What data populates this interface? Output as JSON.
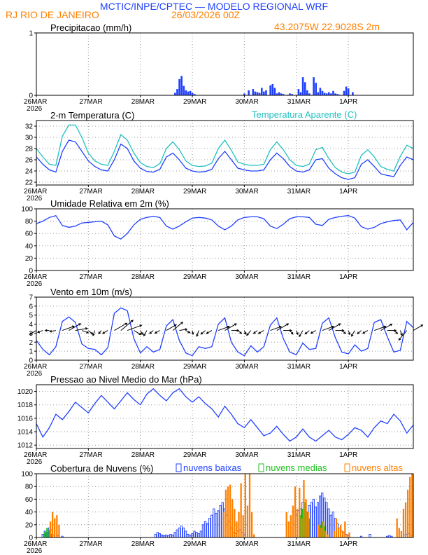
{
  "header": {
    "title": "MCTIC/INPE/CPTEC — MODELO REGIONAL WRF",
    "location": "RJ RIO DE JANEIRO",
    "run": "26/03/2026 00Z",
    "coords": "43.2075W 22.9028S 2m"
  },
  "colors": {
    "header_title": "#2040ff",
    "header_sub": "#ff8000",
    "temp": "#2040ff",
    "apparent": "#20c0c0",
    "low": "#2040ff",
    "mid": "#20c020",
    "high": "#ff8000"
  },
  "chart_data": [
    {
      "type": "bar",
      "title": "Precipitacao (mm/h)",
      "x_unit": "hours since 26MAR 00Z",
      "xlim": [
        0,
        174
      ],
      "ylim": [
        0,
        1
      ],
      "yticks": [
        0,
        1
      ],
      "xticks": [
        "26MAR",
        "27MAR",
        "28MAR",
        "29MAR",
        "30MAR",
        "31MAR",
        "1APR"
      ],
      "year_label": "2026",
      "x": [
        64,
        65,
        66,
        67,
        68,
        69,
        70,
        71,
        72,
        73,
        96,
        98,
        100,
        101,
        102,
        103,
        104,
        105,
        106,
        108,
        109,
        110,
        111,
        112,
        113,
        114,
        116,
        117,
        118,
        121,
        122,
        123,
        124,
        125,
        126,
        128,
        129,
        130,
        131,
        132,
        133,
        134,
        135,
        136,
        137,
        138,
        139,
        140,
        142,
        143,
        144,
        146
      ],
      "values": [
        0.04,
        0.1,
        0.26,
        0.31,
        0.15,
        0.08,
        0.06,
        0.07,
        0.04,
        0.02,
        0.03,
        0.08,
        0.1,
        0.06,
        0.05,
        0.04,
        0.12,
        0.06,
        0.08,
        0.16,
        0.18,
        0.12,
        0.03,
        0.05,
        0.03,
        0.02,
        0.01,
        0.03,
        0.02,
        0.1,
        0.05,
        0.29,
        0.21,
        0.08,
        0.03,
        0.29,
        0.2,
        0.05,
        0.12,
        0.07,
        0.04,
        0.03,
        0.05,
        0.03,
        0.07,
        0.03,
        0.02,
        0.01,
        0.07,
        0.14,
        0.11,
        0.05
      ]
    },
    {
      "type": "line",
      "title": "2-m Temperatura (C)",
      "legend": "Temperatura Aparente (C)",
      "xlim": [
        0,
        174
      ],
      "ylim": [
        21.5,
        33
      ],
      "yticks": [
        22,
        24,
        26,
        28,
        30,
        32
      ],
      "xticks": [
        "26MAR",
        "27MAR",
        "28MAR",
        "29MAR",
        "30MAR",
        "31MAR",
        "1APR"
      ],
      "year_label": "2026",
      "x": [
        0,
        3,
        6,
        9,
        12,
        15,
        18,
        21,
        24,
        27,
        30,
        33,
        36,
        39,
        42,
        45,
        48,
        51,
        54,
        57,
        60,
        63,
        66,
        69,
        72,
        75,
        78,
        81,
        84,
        87,
        90,
        93,
        96,
        99,
        102,
        105,
        108,
        111,
        114,
        117,
        120,
        123,
        126,
        129,
        132,
        135,
        138,
        141,
        144,
        147,
        150,
        153,
        156,
        159,
        162,
        165,
        168,
        171,
        174
      ],
      "series": [
        {
          "name": "Temperatura",
          "values": [
            26.5,
            25.2,
            24.2,
            23.8,
            27.5,
            29.5,
            29.2,
            27.5,
            25.8,
            24.8,
            24.2,
            24.0,
            26.0,
            28.8,
            28.0,
            25.8,
            24.5,
            23.9,
            23.8,
            24.3,
            26.5,
            27.2,
            26.0,
            24.5,
            24.0,
            23.8,
            23.9,
            24.3,
            26.2,
            27.5,
            26.0,
            24.5,
            24.2,
            24.0,
            24.0,
            24.2,
            26.0,
            27.2,
            26.2,
            24.8,
            24.0,
            23.8,
            24.2,
            26.0,
            26.2,
            24.5,
            23.5,
            22.8,
            22.5,
            22.8,
            25.2,
            26.0,
            24.8,
            23.5,
            23.2,
            23.0,
            25.0,
            26.5,
            26.0
          ]
        },
        {
          "name": "Temperatura Aparente",
          "values": [
            28.0,
            26.5,
            25.2,
            25.0,
            30.2,
            32.2,
            32.2,
            30.0,
            27.2,
            25.8,
            25.2,
            25.0,
            27.5,
            30.5,
            29.5,
            27.2,
            25.5,
            24.8,
            24.6,
            25.3,
            28.0,
            29.2,
            27.8,
            25.8,
            25.0,
            24.8,
            24.9,
            25.4,
            28.0,
            29.5,
            27.7,
            25.6,
            25.2,
            25.0,
            25.0,
            25.2,
            27.8,
            29.2,
            27.8,
            26.0,
            25.0,
            24.8,
            25.2,
            27.8,
            28.2,
            26.2,
            24.6,
            23.8,
            23.5,
            23.8,
            26.8,
            27.8,
            26.5,
            24.8,
            24.3,
            24.0,
            26.6,
            28.6,
            28.0
          ]
        }
      ]
    },
    {
      "type": "line",
      "title": "Umidade Relativa em 2m (%)",
      "xlim": [
        0,
        174
      ],
      "ylim": [
        0,
        100
      ],
      "yticks": [
        0,
        20,
        40,
        60,
        80,
        100
      ],
      "xticks": [
        "26MAR",
        "27MAR",
        "28MAR",
        "29MAR",
        "30MAR",
        "31MAR",
        "1APR"
      ],
      "year_label": "2026",
      "x": [
        0,
        3,
        6,
        9,
        12,
        15,
        18,
        21,
        24,
        27,
        30,
        33,
        36,
        39,
        42,
        45,
        48,
        51,
        54,
        57,
        60,
        63,
        66,
        69,
        72,
        75,
        78,
        81,
        84,
        87,
        90,
        93,
        96,
        99,
        102,
        105,
        108,
        111,
        114,
        117,
        120,
        123,
        126,
        129,
        132,
        135,
        138,
        141,
        144,
        147,
        150,
        153,
        156,
        159,
        162,
        165,
        168,
        171,
        174
      ],
      "series": [
        {
          "name": "Umidade",
          "values": [
            76,
            80,
            86,
            89,
            73,
            70,
            72,
            77,
            78,
            79,
            80,
            74,
            56,
            51,
            60,
            74,
            83,
            86,
            88,
            86,
            72,
            67,
            72,
            79,
            85,
            86,
            85,
            82,
            72,
            66,
            72,
            82,
            86,
            87,
            87,
            84,
            72,
            68,
            75,
            84,
            87,
            87,
            86,
            75,
            73,
            83,
            86,
            88,
            89,
            85,
            71,
            67,
            70,
            76,
            79,
            81,
            82,
            66,
            78
          ]
        }
      ]
    },
    {
      "type": "line",
      "title": "Vento em 10m (m/s)",
      "xlim": [
        0,
        174
      ],
      "ylim": [
        0,
        7
      ],
      "yticks": [
        0,
        1,
        2,
        3,
        4,
        5,
        6,
        7
      ],
      "xticks": [
        "26MAR",
        "27MAR",
        "28MAR",
        "29MAR",
        "30MAR",
        "31MAR",
        "1APR"
      ],
      "year_label": "2026",
      "x": [
        0,
        3,
        6,
        9,
        12,
        15,
        18,
        21,
        24,
        27,
        30,
        33,
        36,
        39,
        42,
        45,
        48,
        51,
        54,
        57,
        60,
        63,
        66,
        69,
        72,
        75,
        78,
        81,
        84,
        87,
        90,
        93,
        96,
        99,
        102,
        105,
        108,
        111,
        114,
        117,
        120,
        123,
        126,
        129,
        132,
        135,
        138,
        141,
        144,
        147,
        150,
        153,
        156,
        159,
        162,
        165,
        168,
        171,
        174
      ],
      "series": [
        {
          "name": "Velocidade",
          "values": [
            2.2,
            1.2,
            0.6,
            1.5,
            4.3,
            4.8,
            4.2,
            1.8,
            1.3,
            1.2,
            0.6,
            1.4,
            5.2,
            5.8,
            5.5,
            2.4,
            0.8,
            1.5,
            0.9,
            1.2,
            3.8,
            4.5,
            2.2,
            0.8,
            0.5,
            1.5,
            1.3,
            1.5,
            4.0,
            4.7,
            2.0,
            0.9,
            0.5,
            1.6,
            0.9,
            1.5,
            3.9,
            4.7,
            2.4,
            0.9,
            0.6,
            1.9,
            1.2,
            1.3,
            4.1,
            4.7,
            2.5,
            0.9,
            0.7,
            1.7,
            1.0,
            1.3,
            4.2,
            4.5,
            2.6,
            0.9,
            1.1,
            4.3,
            3.6
          ]
        },
        {
          "name": "Direcao (graus)",
          "values": [
            240,
            250,
            270,
            260,
            70,
            60,
            80,
            110,
            130,
            200,
            220,
            240,
            60,
            50,
            70,
            120,
            150,
            210,
            230,
            240,
            60,
            50,
            80,
            120,
            170,
            200,
            230,
            240,
            70,
            60,
            90,
            130,
            160,
            220,
            230,
            240,
            70,
            60,
            90,
            140,
            160,
            210,
            230,
            240,
            70,
            60,
            90,
            130,
            160,
            210,
            230,
            240,
            70,
            60,
            90,
            130,
            160,
            220,
            60
          ]
        }
      ]
    },
    {
      "type": "line",
      "title": "Pressao ao Nivel Medio do Mar (hPa)",
      "xlim": [
        0,
        174
      ],
      "ylim": [
        1011.5,
        1021
      ],
      "yticks": [
        1012,
        1014,
        1016,
        1018,
        1020
      ],
      "xticks": [
        "26MAR",
        "27MAR",
        "28MAR",
        "29MAR",
        "30MAR",
        "31MAR",
        "1APR"
      ],
      "year_label": "2026",
      "x": [
        0,
        3,
        6,
        9,
        12,
        15,
        18,
        21,
        24,
        27,
        30,
        33,
        36,
        39,
        42,
        45,
        48,
        51,
        54,
        57,
        60,
        63,
        66,
        69,
        72,
        75,
        78,
        81,
        84,
        87,
        90,
        93,
        96,
        99,
        102,
        105,
        108,
        111,
        114,
        117,
        120,
        123,
        126,
        129,
        132,
        135,
        138,
        141,
        144,
        147,
        150,
        153,
        156,
        159,
        162,
        165,
        168,
        171,
        174
      ],
      "series": [
        {
          "name": "Pressao",
          "values": [
            1015.2,
            1013.2,
            1014.6,
            1016.6,
            1015.8,
            1017.0,
            1018.4,
            1017.6,
            1016.8,
            1018.2,
            1019.4,
            1018.4,
            1017.4,
            1018.6,
            1019.8,
            1018.8,
            1018.0,
            1019.6,
            1020.4,
            1019.4,
            1018.6,
            1019.8,
            1020.4,
            1019.2,
            1018.4,
            1019.2,
            1018.2,
            1017.4,
            1016.2,
            1017.8,
            1016.6,
            1015.2,
            1014.6,
            1015.8,
            1014.6,
            1013.4,
            1013.8,
            1014.8,
            1013.6,
            1012.6,
            1013.2,
            1014.4,
            1013.2,
            1012.6,
            1013.4,
            1014.2,
            1013.2,
            1012.8,
            1013.6,
            1014.6,
            1014.2,
            1013.2,
            1014.6,
            1015.6,
            1015.2,
            1016.6,
            1015.6,
            1013.8,
            1015.0
          ]
        }
      ]
    },
    {
      "type": "bar",
      "title": "Cobertura de Nuvens (%)",
      "xlim": [
        0,
        174
      ],
      "ylim": [
        0,
        100
      ],
      "yticks": [
        0,
        20,
        40,
        60,
        80,
        100
      ],
      "xticks": [
        "26MAR",
        "27MAR",
        "28MAR",
        "29MAR",
        "30MAR",
        "31MAR",
        "1APR"
      ],
      "year_label": "2026",
      "legend": [
        "nuvens baixas",
        "nuvens medias",
        "nuvens altas"
      ],
      "series": [
        {
          "name": "nuvens baixas",
          "x": [
            3,
            4,
            5,
            6,
            7,
            8,
            10,
            12,
            55,
            56,
            57,
            58,
            59,
            60,
            61,
            62,
            63,
            64,
            65,
            66,
            67,
            68,
            69,
            70,
            71,
            72,
            73,
            74,
            75,
            76,
            77,
            78,
            79,
            80,
            81,
            82,
            83,
            84,
            85,
            86,
            87,
            88,
            89,
            90,
            91,
            92,
            93,
            94,
            95,
            96,
            120,
            121,
            122,
            123,
            124,
            125,
            126,
            127,
            128,
            129,
            130,
            131,
            132,
            133,
            134,
            135,
            136,
            137,
            138,
            139,
            140,
            141,
            142,
            143,
            144,
            150,
            154,
            162,
            163,
            164,
            170,
            171,
            172,
            173
          ],
          "values": [
            5,
            10,
            8,
            15,
            12,
            4,
            3,
            2,
            5,
            8,
            6,
            4,
            3,
            4,
            3,
            5,
            4,
            8,
            12,
            15,
            18,
            15,
            10,
            5,
            4,
            6,
            10,
            8,
            6,
            10,
            20,
            25,
            22,
            30,
            35,
            45,
            38,
            42,
            50,
            55,
            45,
            35,
            25,
            15,
            8,
            6,
            10,
            12,
            8,
            5,
            35,
            42,
            45,
            55,
            48,
            40,
            50,
            55,
            60,
            48,
            55,
            65,
            70,
            62,
            55,
            45,
            35,
            40,
            30,
            22,
            15,
            10,
            8,
            5,
            3,
            2,
            5,
            2,
            3,
            2,
            4,
            5,
            6,
            4
          ]
        },
        {
          "name": "nuvens medias",
          "x": [
            4,
            5,
            6,
            7,
            122,
            123,
            124,
            125,
            126,
            131,
            132,
            133
          ],
          "values": [
            8,
            15,
            12,
            6,
            35,
            45,
            55,
            40,
            30,
            20,
            25,
            18
          ]
        },
        {
          "name": "nuvens altas",
          "x": [
            6,
            7,
            8,
            9,
            10,
            86,
            87,
            88,
            89,
            90,
            91,
            92,
            93,
            94,
            95,
            96,
            97,
            98,
            99,
            100,
            115,
            116,
            117,
            118,
            119,
            120,
            121,
            122,
            123,
            124,
            125,
            130,
            131,
            132,
            133,
            134,
            137,
            138,
            139,
            140,
            141,
            142,
            143,
            144,
            166,
            167,
            168,
            169,
            170,
            171,
            172,
            173
          ],
          "values": [
            25,
            40,
            30,
            35,
            20,
            40,
            75,
            80,
            83,
            60,
            45,
            25,
            40,
            85,
            35,
            100,
            50,
            100,
            40,
            5,
            40,
            25,
            35,
            50,
            80,
            45,
            78,
            30,
            90,
            60,
            40,
            20,
            15,
            25,
            10,
            5,
            10,
            30,
            15,
            20,
            10,
            25,
            5,
            8,
            30,
            15,
            10,
            45,
            55,
            75,
            95,
            100
          ]
        }
      ]
    }
  ]
}
